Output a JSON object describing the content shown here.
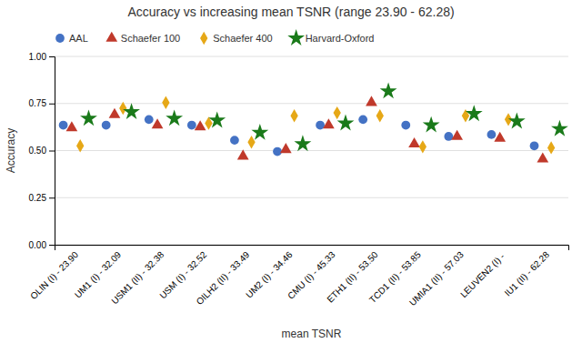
{
  "chart_data": {
    "type": "scatter",
    "title": "Accuracy vs increasing mean TSNR (range 23.90 - 62.28)",
    "xlabel": "mean TSNR",
    "ylabel": "Accuracy",
    "categories": [
      "OLIN (I) - 23.90",
      "UM1 (I) - 32.09",
      "USM1 (II) - 32.38",
      "USM (I) - 32.52",
      "OILH2 (II) - 33.49",
      "UM2 (I) - 34.46",
      "CMU (I) - 45.33",
      "ETH1 (II) - 53.50",
      "TCD1 (II) - 53.85",
      "UMIA1 (II) - 57.03",
      "LEUVEN2 (I) - ",
      "IU1 (II) - 62.28"
    ],
    "series": [
      {
        "name": "AAL",
        "color": "#4472c4",
        "marker": "circle",
        "values": [
          0.635,
          0.635,
          0.665,
          0.635,
          0.555,
          0.495,
          0.635,
          0.665,
          0.635,
          0.575,
          0.585,
          0.525
        ]
      },
      {
        "name": "Schaefer 100",
        "color": "#c0392b",
        "marker": "triangle",
        "values": [
          0.62,
          0.69,
          0.635,
          0.625,
          0.47,
          0.505,
          0.635,
          0.755,
          0.535,
          0.575,
          0.565,
          0.455
        ]
      },
      {
        "name": "Schaefer 400",
        "color": "#e6a817",
        "marker": "diamond",
        "values": [
          0.525,
          0.725,
          0.755,
          0.645,
          0.545,
          0.685,
          0.7,
          0.685,
          0.52,
          0.685,
          0.665,
          0.515
        ]
      },
      {
        "name": "Harvard-Oxford",
        "color": "#1a7a1a",
        "marker": "star",
        "values": [
          0.67,
          0.705,
          0.67,
          0.66,
          0.595,
          0.535,
          0.645,
          0.815,
          0.635,
          0.695,
          0.655,
          0.615
        ]
      }
    ],
    "ylim": [
      0,
      1
    ],
    "yticks": [
      {
        "value": 0,
        "label": "0.00"
      },
      {
        "value": 0.25,
        "label": "0.25"
      },
      {
        "value": 0.5,
        "label": "0.50"
      },
      {
        "value": 0.75,
        "label": "0.75"
      },
      {
        "value": 1,
        "label": "1.00"
      }
    ],
    "grid": "y",
    "legend": "top"
  }
}
